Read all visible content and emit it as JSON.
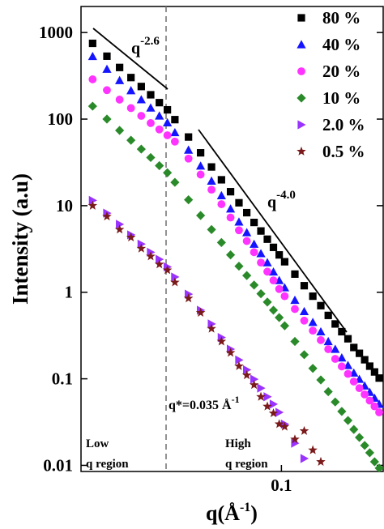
{
  "chart_data": {
    "type": "scatter",
    "x_label": {
      "base": "q(Å",
      "sup": "-1",
      "end": ")"
    },
    "y_label": "Intensity (a.u)",
    "xscale": "log",
    "yscale": "log",
    "xlim": [
      0.0162,
      0.252
    ],
    "ylim": [
      0.0085,
      2000
    ],
    "xticks": [
      0.1
    ],
    "yticks": [
      0.01,
      0.1,
      1,
      10,
      100,
      1000
    ],
    "legend": "upper right",
    "x": [
      0.018,
      0.0205,
      0.023,
      0.0255,
      0.028,
      0.0305,
      0.033,
      0.0355,
      0.038,
      0.043,
      0.048,
      0.053,
      0.058,
      0.063,
      0.068,
      0.073,
      0.078,
      0.083,
      0.088,
      0.093,
      0.098,
      0.103,
      0.113,
      0.123,
      0.133,
      0.143,
      0.153,
      0.163,
      0.173,
      0.183,
      0.193,
      0.203,
      0.213,
      0.223,
      0.233,
      0.243
    ],
    "series": [
      {
        "name": "80 %",
        "color": "#000000",
        "marker": "square",
        "values": [
          750,
          533,
          395,
          302,
          238,
          191,
          155,
          128,
          98.6,
          62.1,
          40.8,
          28.0,
          19.9,
          14.5,
          10.8,
          8.3,
          6.4,
          5.1,
          4.1,
          3.3,
          2.7,
          2.25,
          1.62,
          1.19,
          0.9,
          0.7,
          0.54,
          0.43,
          0.35,
          0.29,
          0.23,
          0.197,
          0.166,
          0.14,
          0.12,
          0.102
        ]
      },
      {
        "name": "40 %",
        "color": "#1414ff",
        "marker": "triangle",
        "values": [
          531,
          378,
          280,
          214,
          168,
          135,
          109,
          91,
          70,
          44,
          28.8,
          19.3,
          13.1,
          9.2,
          6.5,
          4.9,
          3.6,
          2.8,
          2.2,
          1.72,
          1.37,
          1.13,
          0.81,
          0.6,
          0.45,
          0.35,
          0.27,
          0.22,
          0.175,
          0.143,
          0.117,
          0.099,
          0.083,
          0.07,
          0.06,
          0.051
        ]
      },
      {
        "name": "20 %",
        "color": "#ff33ff",
        "marker": "circle",
        "values": [
          288,
          216,
          168,
          134,
          109,
          90,
          76,
          65,
          55,
          35,
          22.9,
          15.3,
          10.4,
          7.3,
          5.2,
          3.9,
          2.9,
          2.2,
          1.73,
          1.37,
          1.09,
          0.9,
          0.64,
          0.47,
          0.36,
          0.28,
          0.22,
          0.17,
          0.139,
          0.114,
          0.093,
          0.078,
          0.066,
          0.056,
          0.048,
          0.041
        ]
      },
      {
        "name": "10 %",
        "color": "#2a8a2a",
        "marker": "diamond",
        "values": [
          141,
          100,
          74,
          57,
          45,
          36,
          29,
          24,
          18.6,
          11.7,
          7.7,
          5.3,
          3.75,
          2.7,
          2.0,
          1.56,
          1.21,
          0.96,
          0.77,
          0.62,
          0.51,
          0.41,
          0.27,
          0.19,
          0.132,
          0.097,
          0.071,
          0.054,
          0.042,
          0.033,
          0.026,
          0.021,
          0.017,
          0.014,
          0.011,
          0.0093
        ]
      },
      {
        "name": "2.0 %",
        "color": "#9933ff",
        "marker": "triangle-right",
        "values": [
          11.5,
          8.2,
          6.1,
          4.6,
          3.6,
          2.9,
          2.4,
          1.96,
          1.5,
          0.95,
          0.62,
          0.43,
          0.3,
          0.22,
          0.165,
          0.127,
          0.099,
          0.078,
          0.062,
          0.051,
          0.041,
          0.03,
          0.018,
          0.012,
          null,
          null,
          null,
          null,
          null,
          null,
          null,
          null,
          null,
          null,
          null,
          null
        ]
      },
      {
        "name": "0.5 %",
        "color": "#7a1a1a",
        "marker": "star",
        "values": [
          10,
          7.5,
          5.3,
          4.3,
          3.2,
          2.6,
          2.1,
          1.8,
          1.3,
          0.85,
          0.58,
          0.38,
          0.27,
          0.2,
          0.14,
          0.11,
          0.085,
          0.062,
          0.048,
          0.04,
          0.03,
          0.028,
          0.02,
          0.025,
          0.015,
          0.011,
          null,
          null,
          null,
          null,
          null,
          null,
          null,
          null,
          null,
          null
        ]
      }
    ],
    "annotations": {
      "power_law_low": {
        "base": "q",
        "sup": "-2.6"
      },
      "power_law_high": {
        "base": "q",
        "sup": "-4.0"
      },
      "critical_q": {
        "base": "q*=0.035 Å",
        "sup": "-1"
      },
      "low_region": [
        "Low",
        "q region"
      ],
      "high_region": [
        "High",
        "q region"
      ]
    }
  }
}
